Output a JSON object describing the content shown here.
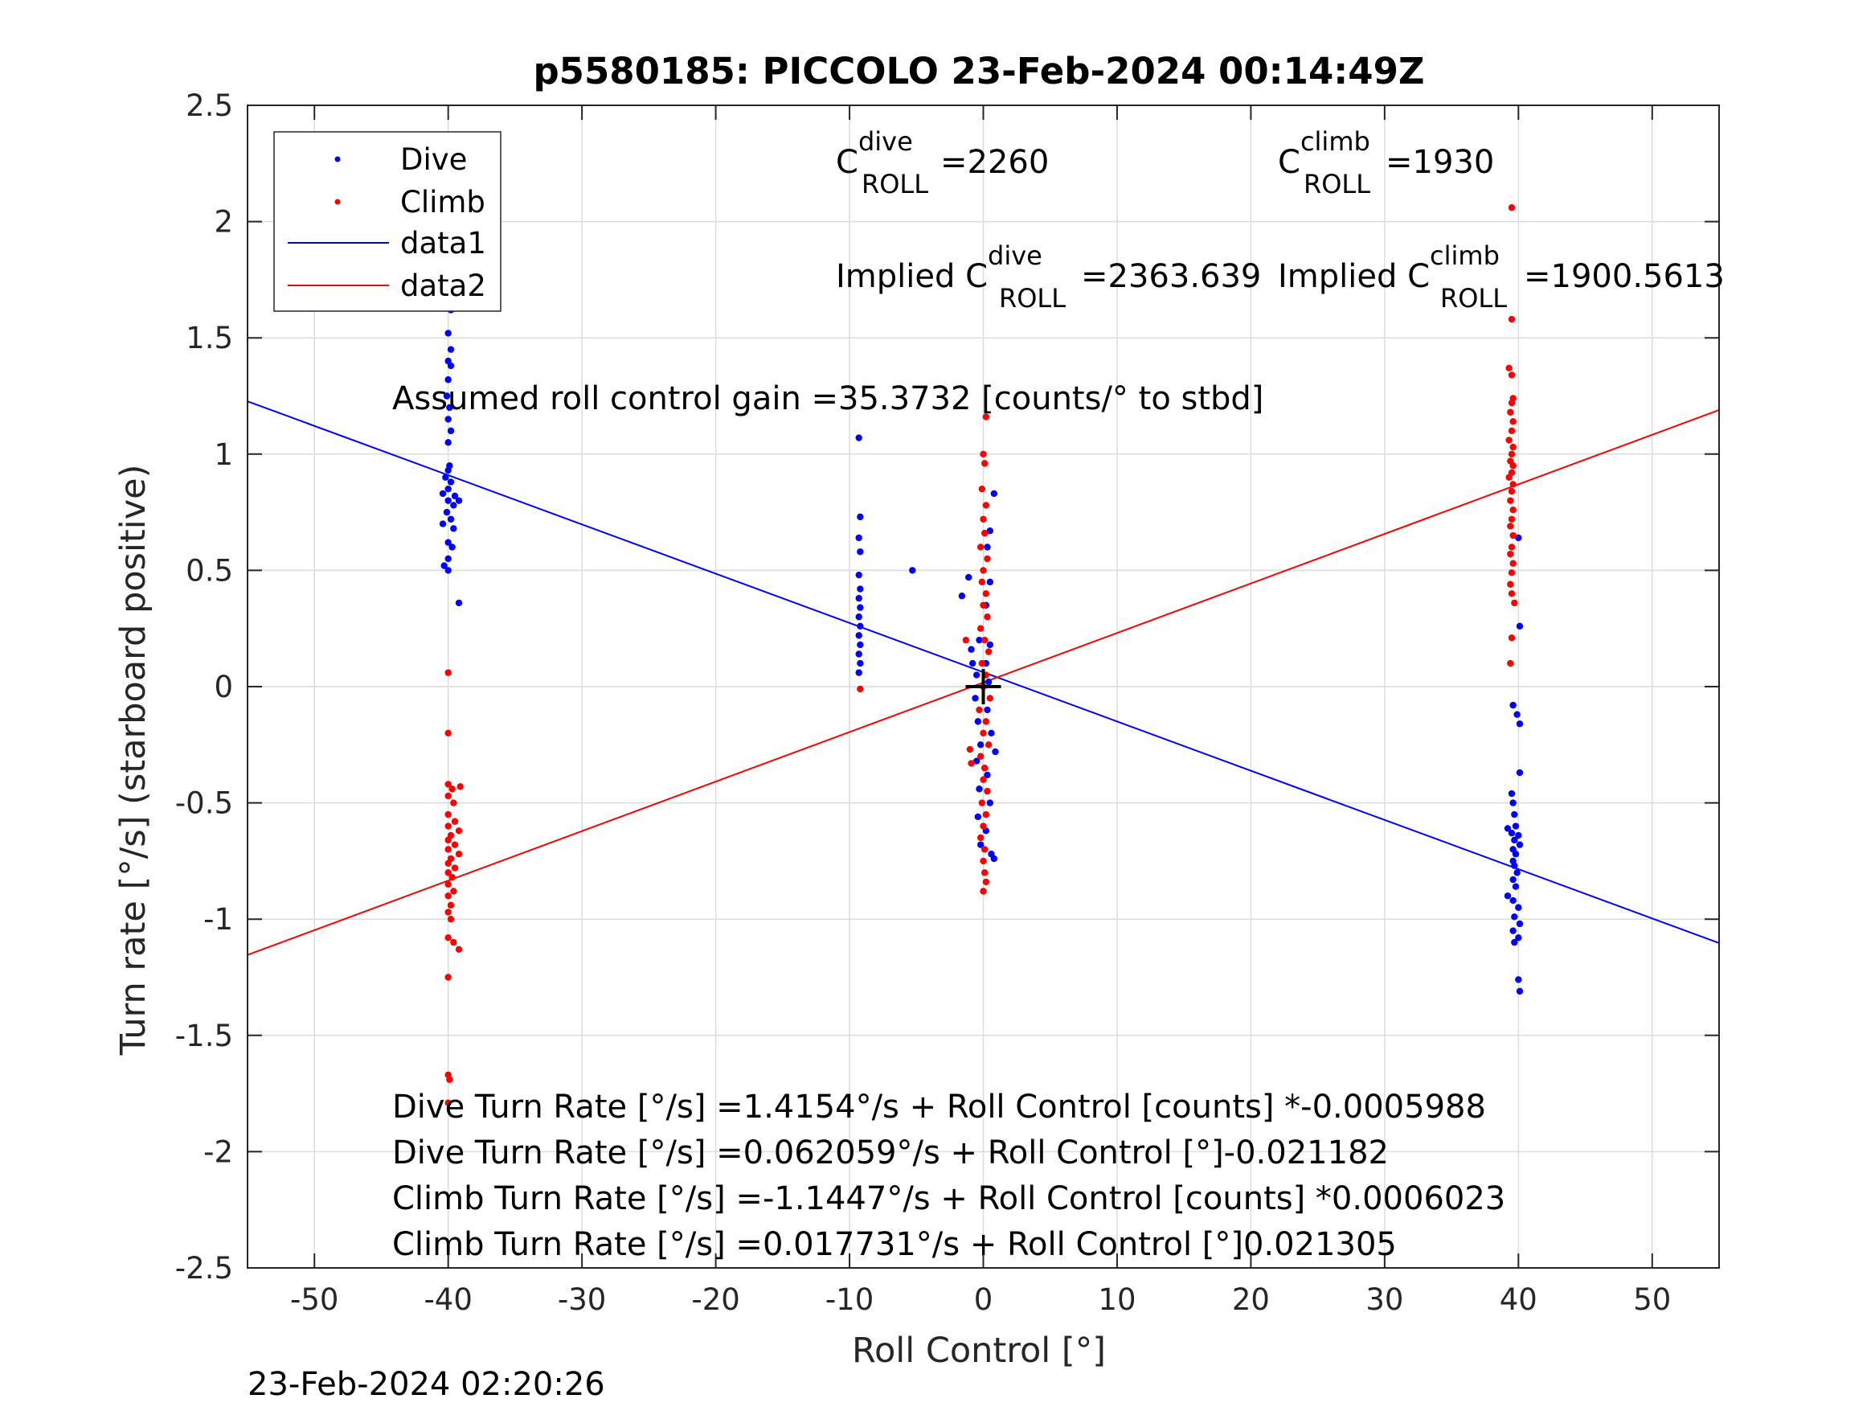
{
  "chart_data": {
    "type": "scatter",
    "title": "p5580185: PICCOLO 23-Feb-2024 00:14:49Z",
    "xlabel": "Roll Control [°]",
    "ylabel": "Turn rate [°/s] (starboard positive)",
    "xlim": [
      -55,
      55
    ],
    "ylim": [
      -2.5,
      2.5
    ],
    "xticks": [
      -50,
      -40,
      -30,
      -20,
      -10,
      0,
      10,
      20,
      30,
      40,
      50
    ],
    "yticks": [
      -2.5,
      -2,
      -1.5,
      -1,
      -0.5,
      0,
      0.5,
      1,
      1.5,
      2,
      2.5
    ],
    "xtick_labels": [
      "-50",
      "-40",
      "-30",
      "-20",
      "-10",
      "0",
      "10",
      "20",
      "30",
      "40",
      "50"
    ],
    "ytick_labels": [
      "-2.5",
      "-2",
      "-1.5",
      "-1",
      "-0.5",
      "0",
      "0.5",
      "1",
      "1.5",
      "2",
      "2.5"
    ],
    "grid": true,
    "legend": {
      "placement": "top-left",
      "entries": [
        {
          "label": "Dive",
          "kind": "marker",
          "color": "#0000ff"
        },
        {
          "label": "Climb",
          "kind": "marker",
          "color": "#ff0000"
        },
        {
          "label": "data1",
          "kind": "line",
          "color": "#0000ff"
        },
        {
          "label": "data2",
          "kind": "line",
          "color": "#ff0000"
        }
      ]
    },
    "series": [
      {
        "name": "Dive",
        "color": "#0000ff",
        "points": [
          [
            -40,
            1.68
          ],
          [
            -40,
            1.64
          ],
          [
            -39.8,
            1.62
          ],
          [
            -40,
            1.52
          ],
          [
            -39.8,
            1.45
          ],
          [
            -40,
            1.4
          ],
          [
            -39.8,
            1.38
          ],
          [
            -40,
            1.32
          ],
          [
            -40.1,
            1.25
          ],
          [
            -39.9,
            1.2
          ],
          [
            -40,
            1.15
          ],
          [
            -39.8,
            1.1
          ],
          [
            -40,
            1.05
          ],
          [
            -39.9,
            0.95
          ],
          [
            -40,
            0.93
          ],
          [
            -40.2,
            0.9
          ],
          [
            -39.8,
            0.88
          ],
          [
            -40,
            0.85
          ],
          [
            -40.4,
            0.83
          ],
          [
            -39.5,
            0.82
          ],
          [
            -40,
            0.8
          ],
          [
            -39.2,
            0.8
          ],
          [
            -39.6,
            0.78
          ],
          [
            -40.1,
            0.75
          ],
          [
            -39.8,
            0.72
          ],
          [
            -40.4,
            0.7
          ],
          [
            -39.6,
            0.68
          ],
          [
            -40,
            0.62
          ],
          [
            -39.7,
            0.6
          ],
          [
            -40,
            0.55
          ],
          [
            -40.3,
            0.52
          ],
          [
            -40,
            0.5
          ],
          [
            -39.2,
            0.36
          ],
          [
            -9.3,
            1.07
          ],
          [
            -9.2,
            0.73
          ],
          [
            -9.3,
            0.64
          ],
          [
            -9.2,
            0.58
          ],
          [
            -9.3,
            0.48
          ],
          [
            -9.2,
            0.42
          ],
          [
            -9.3,
            0.38
          ],
          [
            -9.2,
            0.34
          ],
          [
            -9.3,
            0.3
          ],
          [
            -9.2,
            0.26
          ],
          [
            -9.3,
            0.22
          ],
          [
            -9.2,
            0.18
          ],
          [
            -9.3,
            0.14
          ],
          [
            -9.2,
            0.1
          ],
          [
            -9.3,
            0.06
          ],
          [
            -5.3,
            0.5
          ],
          [
            -1.6,
            0.39
          ],
          [
            -1.1,
            0.47
          ],
          [
            -0.9,
            0.16
          ],
          [
            -0.8,
            0.1
          ],
          [
            0.8,
            0.83
          ],
          [
            0.5,
            0.67
          ],
          [
            0.3,
            0.6
          ],
          [
            0.5,
            0.45
          ],
          [
            0.2,
            0.35
          ],
          [
            -0.3,
            0.2
          ],
          [
            0.5,
            0.18
          ],
          [
            0.2,
            0.1
          ],
          [
            -0.5,
            0.05
          ],
          [
            0.4,
            0.02
          ],
          [
            -0.6,
            -0.05
          ],
          [
            0.3,
            -0.1
          ],
          [
            -0.4,
            -0.15
          ],
          [
            0.6,
            -0.2
          ],
          [
            -0.2,
            -0.25
          ],
          [
            0.9,
            -0.28
          ],
          [
            -0.5,
            -0.32
          ],
          [
            0.3,
            -0.38
          ],
          [
            -0.3,
            -0.44
          ],
          [
            0.5,
            -0.5
          ],
          [
            -0.4,
            -0.56
          ],
          [
            0.2,
            -0.62
          ],
          [
            -0.2,
            -0.68
          ],
          [
            0.6,
            -0.72
          ],
          [
            0.8,
            -0.74
          ],
          [
            40,
            0.64
          ],
          [
            40.1,
            0.26
          ],
          [
            39.6,
            -0.08
          ],
          [
            39.9,
            -0.12
          ],
          [
            40.1,
            -0.16
          ],
          [
            40.1,
            -0.37
          ],
          [
            39.5,
            -0.46
          ],
          [
            39.6,
            -0.5
          ],
          [
            39.7,
            -0.55
          ],
          [
            39.8,
            -0.6
          ],
          [
            39.2,
            -0.61
          ],
          [
            39.5,
            -0.63
          ],
          [
            40,
            -0.64
          ],
          [
            39.7,
            -0.66
          ],
          [
            40.1,
            -0.68
          ],
          [
            39.6,
            -0.7
          ],
          [
            39.8,
            -0.72
          ],
          [
            39.6,
            -0.75
          ],
          [
            39.7,
            -0.77
          ],
          [
            39.9,
            -0.8
          ],
          [
            39.6,
            -0.83
          ],
          [
            39.8,
            -0.86
          ],
          [
            39.2,
            -0.9
          ],
          [
            39.6,
            -0.92
          ],
          [
            40,
            -0.95
          ],
          [
            39.7,
            -0.99
          ],
          [
            40.1,
            -1.02
          ],
          [
            39.6,
            -1.05
          ],
          [
            40,
            -1.08
          ],
          [
            39.7,
            -1.1
          ],
          [
            40,
            -1.26
          ],
          [
            40.1,
            -1.31
          ]
        ],
        "fit_line": {
          "name": "data1",
          "slope": -0.021182,
          "intercept": 0.062059
        }
      },
      {
        "name": "Climb",
        "color": "#ff0000",
        "points": [
          [
            -40,
            0.06
          ],
          [
            -40,
            -0.2
          ],
          [
            -40,
            -0.42
          ],
          [
            -39.7,
            -0.44
          ],
          [
            -39.1,
            -0.43
          ],
          [
            -40,
            -0.47
          ],
          [
            -39.6,
            -0.5
          ],
          [
            -40,
            -0.55
          ],
          [
            -39.5,
            -0.58
          ],
          [
            -40,
            -0.6
          ],
          [
            -39.2,
            -0.62
          ],
          [
            -39.8,
            -0.64
          ],
          [
            -40,
            -0.66
          ],
          [
            -39.5,
            -0.68
          ],
          [
            -40,
            -0.7
          ],
          [
            -39.2,
            -0.72
          ],
          [
            -39.8,
            -0.74
          ],
          [
            -40,
            -0.76
          ],
          [
            -39.5,
            -0.78
          ],
          [
            -40,
            -0.8
          ],
          [
            -39.7,
            -0.82
          ],
          [
            -40,
            -0.85
          ],
          [
            -39.6,
            -0.88
          ],
          [
            -40,
            -0.9
          ],
          [
            -39.8,
            -0.94
          ],
          [
            -40,
            -0.97
          ],
          [
            -39.8,
            -1.0
          ],
          [
            -40,
            -1.08
          ],
          [
            -39.6,
            -1.1
          ],
          [
            -39.2,
            -1.13
          ],
          [
            -40,
            -1.25
          ],
          [
            -40,
            -1.67
          ],
          [
            -39.9,
            -1.69
          ],
          [
            -40,
            -1.79
          ],
          [
            -9.2,
            -0.01
          ],
          [
            -1.3,
            0.2
          ],
          [
            -1.0,
            -0.27
          ],
          [
            -0.9,
            -0.33
          ],
          [
            0.2,
            1.16
          ],
          [
            0,
            1.0
          ],
          [
            0.1,
            0.96
          ],
          [
            -0.1,
            0.85
          ],
          [
            0.2,
            0.78
          ],
          [
            0,
            0.72
          ],
          [
            0.1,
            0.66
          ],
          [
            -0.2,
            0.6
          ],
          [
            0.3,
            0.55
          ],
          [
            0,
            0.5
          ],
          [
            -0.1,
            0.45
          ],
          [
            0.2,
            0.4
          ],
          [
            0,
            0.35
          ],
          [
            0.3,
            0.3
          ],
          [
            -0.2,
            0.25
          ],
          [
            0.1,
            0.2
          ],
          [
            0.4,
            0.15
          ],
          [
            -0.1,
            0.1
          ],
          [
            0.2,
            0.05
          ],
          [
            0,
            0
          ],
          [
            0.5,
            -0.05
          ],
          [
            -0.3,
            -0.1
          ],
          [
            0.2,
            -0.15
          ],
          [
            0,
            -0.2
          ],
          [
            0.4,
            -0.25
          ],
          [
            -0.2,
            -0.3
          ],
          [
            0.1,
            -0.35
          ],
          [
            0,
            -0.4
          ],
          [
            0.3,
            -0.45
          ],
          [
            -0.1,
            -0.5
          ],
          [
            0.2,
            -0.55
          ],
          [
            0,
            -0.6
          ],
          [
            -0.2,
            -0.65
          ],
          [
            0.1,
            -0.7
          ],
          [
            0,
            -0.75
          ],
          [
            0.1,
            -0.8
          ],
          [
            0.2,
            -0.84
          ],
          [
            0,
            -0.88
          ],
          [
            39.5,
            2.06
          ],
          [
            39.5,
            1.58
          ],
          [
            39.3,
            1.37
          ],
          [
            39.5,
            1.34
          ],
          [
            39.6,
            1.24
          ],
          [
            39.5,
            1.22
          ],
          [
            39.4,
            1.18
          ],
          [
            39.6,
            1.14
          ],
          [
            39.5,
            1.1
          ],
          [
            39.3,
            1.06
          ],
          [
            39.6,
            1.03
          ],
          [
            39.5,
            1.0
          ],
          [
            39.4,
            0.97
          ],
          [
            39.6,
            0.95
          ],
          [
            39.5,
            0.92
          ],
          [
            39.3,
            0.9
          ],
          [
            39.6,
            0.87
          ],
          [
            39.5,
            0.84
          ],
          [
            39.4,
            0.8
          ],
          [
            39.6,
            0.76
          ],
          [
            39.5,
            0.72
          ],
          [
            39.4,
            0.69
          ],
          [
            39.6,
            0.65
          ],
          [
            39.5,
            0.6
          ],
          [
            39.4,
            0.57
          ],
          [
            39.6,
            0.53
          ],
          [
            39.5,
            0.49
          ],
          [
            39.4,
            0.44
          ],
          [
            39.5,
            0.4
          ],
          [
            39.7,
            0.36
          ],
          [
            39.5,
            0.21
          ],
          [
            39.4,
            0.1
          ]
        ],
        "fit_line": {
          "name": "data2",
          "slope": 0.021305,
          "intercept": 0.017731
        }
      }
    ],
    "center_marker": {
      "x": 0,
      "y": 0,
      "symbol": "+",
      "color": "#000000"
    },
    "annotations": {
      "c_dive": {
        "base": "C",
        "sup": "dive",
        "sub": "ROLL",
        "value": "=2260"
      },
      "c_climb": {
        "base": "C",
        "sup": "climb",
        "sub": "ROLL",
        "value": "=1930"
      },
      "implied_dive": {
        "prefix": "Implied C",
        "sup": "dive",
        "sub": "ROLL",
        "value": "=2363.639"
      },
      "implied_climb": {
        "prefix": "Implied C",
        "sup": "climb",
        "sub": "ROLL",
        "value": "=1900.5613"
      },
      "gain": "Assumed roll control gain =35.3732 [counts/° to stbd]",
      "eq1": "Dive Turn Rate [°/s] =1.4154°/s + Roll Control [counts] *-0.0005988",
      "eq2": "Dive Turn Rate [°/s] =0.062059°/s + Roll Control [°]-0.021182",
      "eq3": "Climb Turn Rate [°/s] =-1.1447°/s + Roll Control [counts] *0.0006023",
      "eq4": "Climb Turn Rate [°/s] =0.017731°/s + Roll Control [°]0.021305"
    }
  },
  "timestamp": "23-Feb-2024 02:20:26"
}
